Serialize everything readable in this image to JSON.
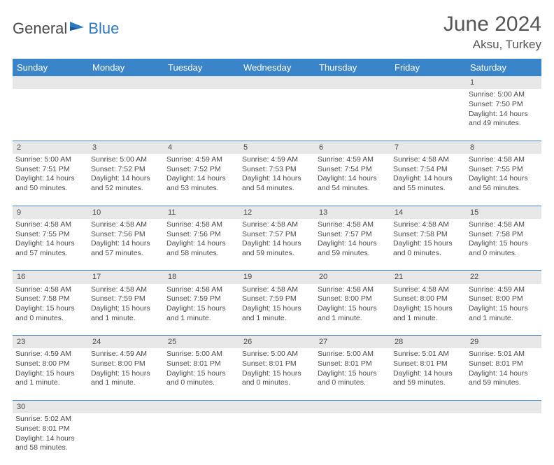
{
  "logo": {
    "part1": "General",
    "part2": "Blue"
  },
  "title": "June 2024",
  "location": "Aksu, Turkey",
  "colors": {
    "header_bg": "#3a84c9",
    "header_text": "#ffffff",
    "daynum_bg": "#e7e7e7",
    "border": "#3a84c9",
    "text": "#4a4a4a",
    "logo_blue": "#2f78c4"
  },
  "day_headers": [
    "Sunday",
    "Monday",
    "Tuesday",
    "Wednesday",
    "Thursday",
    "Friday",
    "Saturday"
  ],
  "weeks": [
    {
      "nums": [
        "",
        "",
        "",
        "",
        "",
        "",
        "1"
      ],
      "cells": [
        null,
        null,
        null,
        null,
        null,
        null,
        {
          "sunrise": "Sunrise: 5:00 AM",
          "sunset": "Sunset: 7:50 PM",
          "daylight": "Daylight: 14 hours and 49 minutes."
        }
      ]
    },
    {
      "nums": [
        "2",
        "3",
        "4",
        "5",
        "6",
        "7",
        "8"
      ],
      "cells": [
        {
          "sunrise": "Sunrise: 5:00 AM",
          "sunset": "Sunset: 7:51 PM",
          "daylight": "Daylight: 14 hours and 50 minutes."
        },
        {
          "sunrise": "Sunrise: 5:00 AM",
          "sunset": "Sunset: 7:52 PM",
          "daylight": "Daylight: 14 hours and 52 minutes."
        },
        {
          "sunrise": "Sunrise: 4:59 AM",
          "sunset": "Sunset: 7:52 PM",
          "daylight": "Daylight: 14 hours and 53 minutes."
        },
        {
          "sunrise": "Sunrise: 4:59 AM",
          "sunset": "Sunset: 7:53 PM",
          "daylight": "Daylight: 14 hours and 54 minutes."
        },
        {
          "sunrise": "Sunrise: 4:59 AM",
          "sunset": "Sunset: 7:54 PM",
          "daylight": "Daylight: 14 hours and 54 minutes."
        },
        {
          "sunrise": "Sunrise: 4:58 AM",
          "sunset": "Sunset: 7:54 PM",
          "daylight": "Daylight: 14 hours and 55 minutes."
        },
        {
          "sunrise": "Sunrise: 4:58 AM",
          "sunset": "Sunset: 7:55 PM",
          "daylight": "Daylight: 14 hours and 56 minutes."
        }
      ]
    },
    {
      "nums": [
        "9",
        "10",
        "11",
        "12",
        "13",
        "14",
        "15"
      ],
      "cells": [
        {
          "sunrise": "Sunrise: 4:58 AM",
          "sunset": "Sunset: 7:55 PM",
          "daylight": "Daylight: 14 hours and 57 minutes."
        },
        {
          "sunrise": "Sunrise: 4:58 AM",
          "sunset": "Sunset: 7:56 PM",
          "daylight": "Daylight: 14 hours and 57 minutes."
        },
        {
          "sunrise": "Sunrise: 4:58 AM",
          "sunset": "Sunset: 7:56 PM",
          "daylight": "Daylight: 14 hours and 58 minutes."
        },
        {
          "sunrise": "Sunrise: 4:58 AM",
          "sunset": "Sunset: 7:57 PM",
          "daylight": "Daylight: 14 hours and 59 minutes."
        },
        {
          "sunrise": "Sunrise: 4:58 AM",
          "sunset": "Sunset: 7:57 PM",
          "daylight": "Daylight: 14 hours and 59 minutes."
        },
        {
          "sunrise": "Sunrise: 4:58 AM",
          "sunset": "Sunset: 7:58 PM",
          "daylight": "Daylight: 15 hours and 0 minutes."
        },
        {
          "sunrise": "Sunrise: 4:58 AM",
          "sunset": "Sunset: 7:58 PM",
          "daylight": "Daylight: 15 hours and 0 minutes."
        }
      ]
    },
    {
      "nums": [
        "16",
        "17",
        "18",
        "19",
        "20",
        "21",
        "22"
      ],
      "cells": [
        {
          "sunrise": "Sunrise: 4:58 AM",
          "sunset": "Sunset: 7:58 PM",
          "daylight": "Daylight: 15 hours and 0 minutes."
        },
        {
          "sunrise": "Sunrise: 4:58 AM",
          "sunset": "Sunset: 7:59 PM",
          "daylight": "Daylight: 15 hours and 1 minute."
        },
        {
          "sunrise": "Sunrise: 4:58 AM",
          "sunset": "Sunset: 7:59 PM",
          "daylight": "Daylight: 15 hours and 1 minute."
        },
        {
          "sunrise": "Sunrise: 4:58 AM",
          "sunset": "Sunset: 7:59 PM",
          "daylight": "Daylight: 15 hours and 1 minute."
        },
        {
          "sunrise": "Sunrise: 4:58 AM",
          "sunset": "Sunset: 8:00 PM",
          "daylight": "Daylight: 15 hours and 1 minute."
        },
        {
          "sunrise": "Sunrise: 4:58 AM",
          "sunset": "Sunset: 8:00 PM",
          "daylight": "Daylight: 15 hours and 1 minute."
        },
        {
          "sunrise": "Sunrise: 4:59 AM",
          "sunset": "Sunset: 8:00 PM",
          "daylight": "Daylight: 15 hours and 1 minute."
        }
      ]
    },
    {
      "nums": [
        "23",
        "24",
        "25",
        "26",
        "27",
        "28",
        "29"
      ],
      "cells": [
        {
          "sunrise": "Sunrise: 4:59 AM",
          "sunset": "Sunset: 8:00 PM",
          "daylight": "Daylight: 15 hours and 1 minute."
        },
        {
          "sunrise": "Sunrise: 4:59 AM",
          "sunset": "Sunset: 8:00 PM",
          "daylight": "Daylight: 15 hours and 1 minute."
        },
        {
          "sunrise": "Sunrise: 5:00 AM",
          "sunset": "Sunset: 8:01 PM",
          "daylight": "Daylight: 15 hours and 0 minutes."
        },
        {
          "sunrise": "Sunrise: 5:00 AM",
          "sunset": "Sunset: 8:01 PM",
          "daylight": "Daylight: 15 hours and 0 minutes."
        },
        {
          "sunrise": "Sunrise: 5:00 AM",
          "sunset": "Sunset: 8:01 PM",
          "daylight": "Daylight: 15 hours and 0 minutes."
        },
        {
          "sunrise": "Sunrise: 5:01 AM",
          "sunset": "Sunset: 8:01 PM",
          "daylight": "Daylight: 14 hours and 59 minutes."
        },
        {
          "sunrise": "Sunrise: 5:01 AM",
          "sunset": "Sunset: 8:01 PM",
          "daylight": "Daylight: 14 hours and 59 minutes."
        }
      ]
    },
    {
      "nums": [
        "30",
        "",
        "",
        "",
        "",
        "",
        ""
      ],
      "cells": [
        {
          "sunrise": "Sunrise: 5:02 AM",
          "sunset": "Sunset: 8:01 PM",
          "daylight": "Daylight: 14 hours and 58 minutes."
        },
        null,
        null,
        null,
        null,
        null,
        null
      ]
    }
  ]
}
